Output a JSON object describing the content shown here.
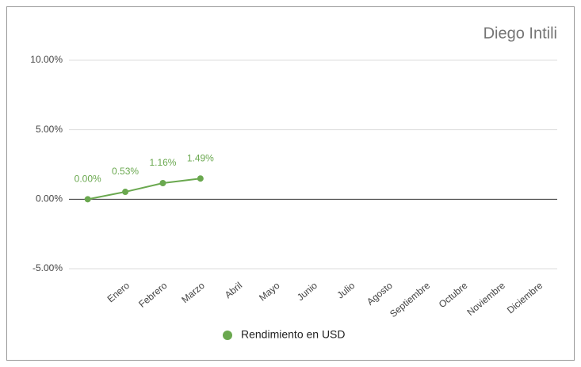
{
  "chart_data": {
    "type": "line",
    "title": "Diego Intili",
    "categories": [
      null,
      "Enero",
      "Febrero",
      "Marzo",
      "Abril",
      "Mayo",
      "Junio",
      "Julio",
      "Agosto",
      "Septiembre",
      "Octubre",
      "Noviembre",
      "Diciembre"
    ],
    "series": [
      {
        "name": "Rendimiento en USD",
        "color": "#6aa84f",
        "values": [
          0,
          0.53,
          1.16,
          1.49,
          null,
          null,
          null,
          null,
          null,
          null,
          null,
          null,
          null
        ],
        "value_labels": [
          "0.00%",
          "0.53%",
          "1.16%",
          "1.49%",
          null,
          null,
          null,
          null,
          null,
          null,
          null,
          null,
          null
        ]
      }
    ],
    "ylim": [
      -5,
      10
    ],
    "yticks": [
      {
        "value": -5,
        "label": "-5.00%"
      },
      {
        "value": 0,
        "label": "0.00%"
      },
      {
        "value": 5,
        "label": "5.00%"
      },
      {
        "value": 10,
        "label": "10.00%"
      }
    ],
    "grid": true,
    "legend": "bottom"
  }
}
